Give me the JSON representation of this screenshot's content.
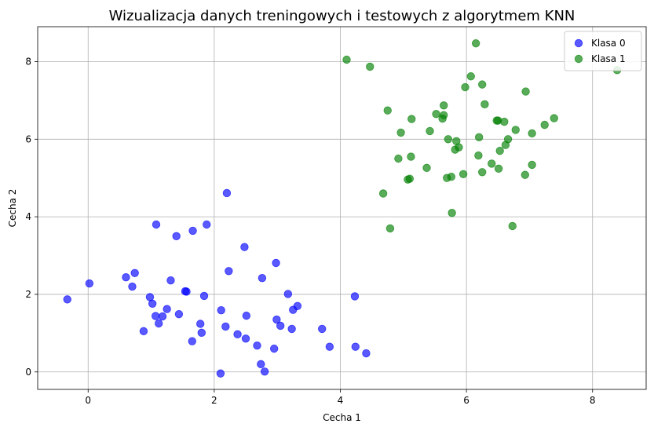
{
  "chart_data": {
    "type": "scatter",
    "title": "Wizualizacja danych treningowych i testowych z algorytmem KNN",
    "xlabel": "Cecha 1",
    "ylabel": "Cecha 2",
    "xlim": [
      -0.8,
      8.85
    ],
    "ylim": [
      -0.45,
      8.9
    ],
    "xticks": [
      0,
      2,
      4,
      6,
      8
    ],
    "yticks": [
      0,
      2,
      4,
      6,
      8
    ],
    "xtick_labels": [
      "0",
      "2",
      "4",
      "6",
      "8"
    ],
    "ytick_labels": [
      "0",
      "2",
      "4",
      "6",
      "8"
    ],
    "grid": true,
    "legend_position": "top-right",
    "series": [
      {
        "name": "Klasa 0",
        "color": "#0000ff",
        "points": [
          [
            -0.33,
            1.87
          ],
          [
            0.02,
            2.28
          ],
          [
            0.6,
            2.44
          ],
          [
            0.7,
            2.2
          ],
          [
            0.74,
            2.55
          ],
          [
            0.88,
            1.05
          ],
          [
            0.98,
            1.93
          ],
          [
            1.02,
            1.76
          ],
          [
            1.07,
            1.44
          ],
          [
            1.08,
            3.8
          ],
          [
            1.12,
            1.25
          ],
          [
            1.18,
            1.43
          ],
          [
            1.25,
            1.62
          ],
          [
            1.31,
            2.36
          ],
          [
            1.4,
            3.5
          ],
          [
            1.44,
            1.49
          ],
          [
            1.54,
            2.08
          ],
          [
            1.56,
            2.07
          ],
          [
            1.65,
            0.79
          ],
          [
            1.66,
            3.64
          ],
          [
            1.78,
            1.24
          ],
          [
            1.8,
            1.01
          ],
          [
            1.84,
            1.96
          ],
          [
            1.88,
            3.8
          ],
          [
            2.1,
            -0.04
          ],
          [
            2.11,
            1.59
          ],
          [
            2.18,
            1.17
          ],
          [
            2.2,
            4.61
          ],
          [
            2.23,
            2.6
          ],
          [
            2.37,
            0.97
          ],
          [
            2.48,
            3.22
          ],
          [
            2.5,
            0.86
          ],
          [
            2.51,
            1.45
          ],
          [
            2.68,
            0.68
          ],
          [
            2.74,
            0.2
          ],
          [
            2.76,
            2.42
          ],
          [
            2.8,
            0.01
          ],
          [
            2.95,
            0.6
          ],
          [
            2.98,
            2.81
          ],
          [
            2.99,
            1.35
          ],
          [
            3.05,
            1.19
          ],
          [
            3.17,
            2.01
          ],
          [
            3.23,
            1.11
          ],
          [
            3.25,
            1.6
          ],
          [
            3.32,
            1.7
          ],
          [
            3.71,
            1.11
          ],
          [
            3.83,
            0.65
          ],
          [
            4.23,
            1.95
          ],
          [
            4.24,
            0.65
          ],
          [
            4.41,
            0.48
          ]
        ]
      },
      {
        "name": "Klasa 1",
        "color": "#008000",
        "points": [
          [
            4.1,
            8.05
          ],
          [
            4.47,
            7.87
          ],
          [
            4.68,
            4.6
          ],
          [
            4.75,
            6.74
          ],
          [
            4.79,
            3.7
          ],
          [
            4.92,
            5.5
          ],
          [
            4.96,
            6.17
          ],
          [
            5.07,
            4.96
          ],
          [
            5.1,
            4.98
          ],
          [
            5.12,
            5.55
          ],
          [
            5.13,
            6.52
          ],
          [
            5.37,
            5.26
          ],
          [
            5.42,
            6.21
          ],
          [
            5.52,
            6.65
          ],
          [
            5.62,
            6.53
          ],
          [
            5.64,
            6.62
          ],
          [
            5.64,
            6.87
          ],
          [
            5.69,
            5.0
          ],
          [
            5.71,
            6.0
          ],
          [
            5.76,
            5.03
          ],
          [
            5.77,
            4.1
          ],
          [
            5.82,
            5.73
          ],
          [
            5.84,
            5.95
          ],
          [
            5.88,
            5.79
          ],
          [
            5.95,
            5.1
          ],
          [
            5.98,
            7.34
          ],
          [
            6.07,
            7.62
          ],
          [
            6.15,
            8.47
          ],
          [
            6.19,
            5.58
          ],
          [
            6.2,
            6.05
          ],
          [
            6.25,
            5.15
          ],
          [
            6.25,
            7.41
          ],
          [
            6.29,
            6.9
          ],
          [
            6.4,
            5.37
          ],
          [
            6.48,
            6.48
          ],
          [
            6.5,
            6.48
          ],
          [
            6.51,
            5.24
          ],
          [
            6.53,
            5.7
          ],
          [
            6.6,
            6.45
          ],
          [
            6.62,
            5.85
          ],
          [
            6.66,
            6.0
          ],
          [
            6.73,
            3.76
          ],
          [
            6.78,
            6.24
          ],
          [
            6.93,
            5.08
          ],
          [
            6.94,
            7.23
          ],
          [
            7.04,
            6.15
          ],
          [
            7.04,
            5.34
          ],
          [
            7.24,
            6.37
          ],
          [
            7.39,
            6.54
          ],
          [
            8.39,
            7.78
          ]
        ]
      }
    ]
  }
}
